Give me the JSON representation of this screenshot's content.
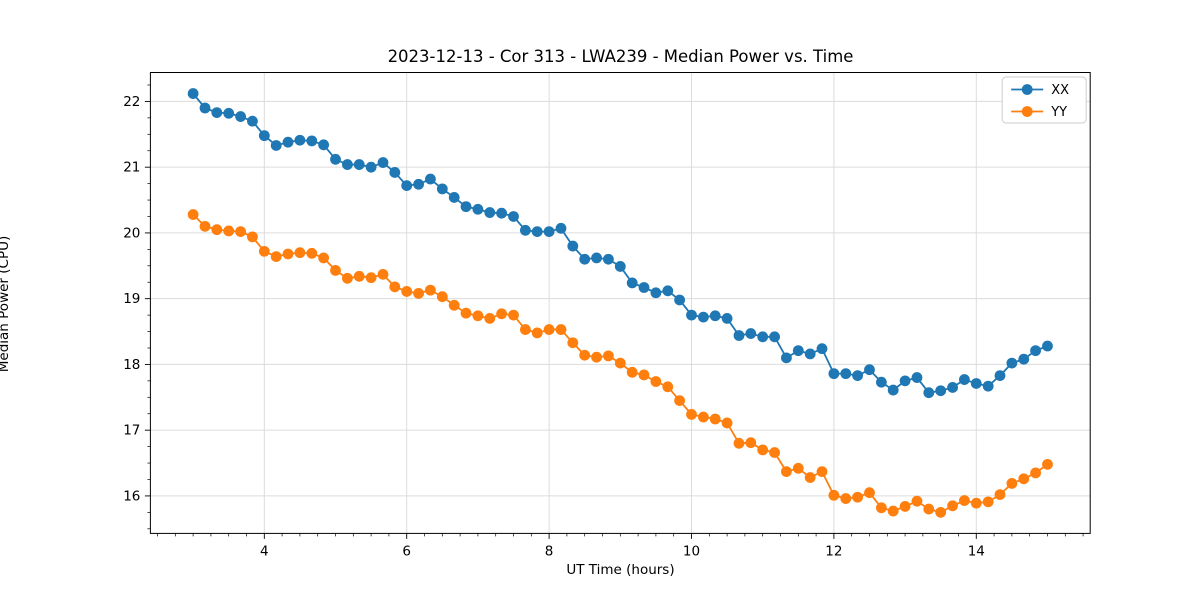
{
  "figure": {
    "title": "2023-12-13 - Cor 313 - LWA239 - Median Power vs. Time",
    "xlabel": "UT Time (hours)",
    "ylabel": "Median Power (CPU)"
  },
  "chart_data": {
    "type": "line",
    "title": "2023-12-13 - Cor 313 - LWA239 - Median Power vs. Time",
    "xlabel": "UT Time (hours)",
    "ylabel": "Median Power (CPU)",
    "xlim": [
      2.4,
      15.6
    ],
    "ylim": [
      15.43,
      22.44
    ],
    "xticks": [
      4,
      6,
      8,
      10,
      12,
      14
    ],
    "yticks": [
      16,
      17,
      18,
      19,
      20,
      21,
      22
    ],
    "minor_tick_step": 0.25,
    "grid": true,
    "grid_color": "#dcdcdc",
    "legend_position": "upper right",
    "background": "#ffffff",
    "x": [
      3.0,
      3.167,
      3.333,
      3.5,
      3.667,
      3.833,
      4.0,
      4.167,
      4.333,
      4.5,
      4.667,
      4.833,
      5.0,
      5.167,
      5.333,
      5.5,
      5.667,
      5.833,
      6.0,
      6.167,
      6.333,
      6.5,
      6.667,
      6.833,
      7.0,
      7.167,
      7.333,
      7.5,
      7.667,
      7.833,
      8.0,
      8.167,
      8.333,
      8.5,
      8.667,
      8.833,
      9.0,
      9.167,
      9.333,
      9.5,
      9.667,
      9.833,
      10.0,
      10.167,
      10.333,
      10.5,
      10.667,
      10.833,
      11.0,
      11.167,
      11.333,
      11.5,
      11.667,
      11.833,
      12.0,
      12.167,
      12.333,
      12.5,
      12.667,
      12.833,
      13.0,
      13.167,
      13.333,
      13.5,
      13.667,
      13.833,
      14.0,
      14.167,
      14.333,
      14.5,
      14.667,
      14.833,
      15.0
    ],
    "series": [
      {
        "name": "XX",
        "color": "#1f77b4",
        "values": [
          22.12,
          21.9,
          21.83,
          21.82,
          21.77,
          21.7,
          21.48,
          21.33,
          21.38,
          21.41,
          21.4,
          21.34,
          21.12,
          21.04,
          21.04,
          21.0,
          21.07,
          20.92,
          20.72,
          20.74,
          20.82,
          20.67,
          20.54,
          20.4,
          20.36,
          20.31,
          20.3,
          20.25,
          20.04,
          20.02,
          20.02,
          20.07,
          19.8,
          19.6,
          19.62,
          19.6,
          19.49,
          19.24,
          19.17,
          19.09,
          19.12,
          18.98,
          18.75,
          18.72,
          18.74,
          18.7,
          18.44,
          18.47,
          18.42,
          18.42,
          18.1,
          18.21,
          18.16,
          18.24,
          17.86,
          17.86,
          17.83,
          17.92,
          17.73,
          17.61,
          17.75,
          17.8,
          17.57,
          17.6,
          17.65,
          17.77,
          17.71,
          17.67,
          17.83,
          18.02,
          18.08,
          18.21,
          18.28
        ]
      },
      {
        "name": "YY",
        "color": "#ff7f0e",
        "values": [
          20.28,
          20.1,
          20.05,
          20.03,
          20.02,
          19.94,
          19.72,
          19.64,
          19.68,
          19.7,
          19.69,
          19.62,
          19.43,
          19.31,
          19.34,
          19.32,
          19.37,
          19.18,
          19.11,
          19.08,
          19.13,
          19.03,
          18.9,
          18.78,
          18.74,
          18.7,
          18.77,
          18.75,
          18.53,
          18.48,
          18.53,
          18.53,
          18.33,
          18.14,
          18.11,
          18.13,
          18.02,
          17.88,
          17.84,
          17.74,
          17.66,
          17.45,
          17.24,
          17.2,
          17.17,
          17.11,
          16.8,
          16.81,
          16.7,
          16.66,
          16.37,
          16.42,
          16.28,
          16.37,
          16.01,
          15.96,
          15.98,
          16.05,
          15.82,
          15.77,
          15.84,
          15.92,
          15.8,
          15.75,
          15.85,
          15.93,
          15.89,
          15.91,
          16.02,
          16.19,
          16.26,
          16.35,
          16.48
        ]
      }
    ]
  }
}
